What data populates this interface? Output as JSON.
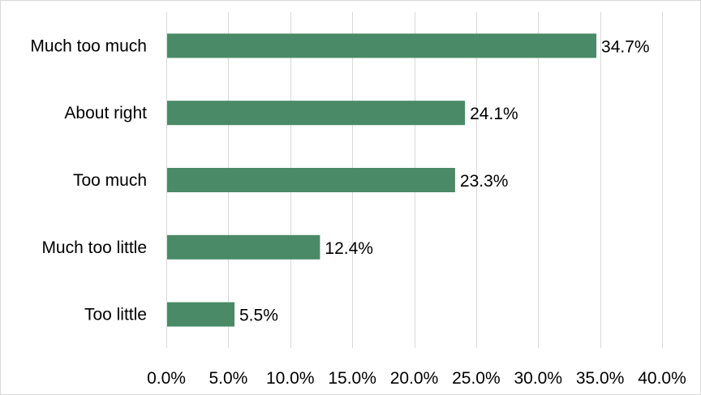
{
  "chart_data": {
    "type": "bar",
    "orientation": "horizontal",
    "categories": [
      "Much too much",
      "About right",
      "Too much",
      "Much too little",
      "Too little"
    ],
    "values": [
      34.7,
      24.1,
      23.3,
      12.4,
      5.5
    ],
    "value_labels": [
      "34.7%",
      "24.1%",
      "23.3%",
      "12.4%",
      "5.5%"
    ],
    "xlim": [
      0,
      40
    ],
    "x_ticks": [
      0,
      5,
      10,
      15,
      20,
      25,
      30,
      35,
      40
    ],
    "x_tick_labels": [
      "0.0%",
      "5.0%",
      "10.0%",
      "15.0%",
      "20.0%",
      "25.0%",
      "30.0%",
      "35.0%",
      "40.0%"
    ],
    "title": "",
    "xlabel": "",
    "ylabel": "",
    "grid": "vertical",
    "legend": "none",
    "bar_color": "#4a8a66"
  }
}
